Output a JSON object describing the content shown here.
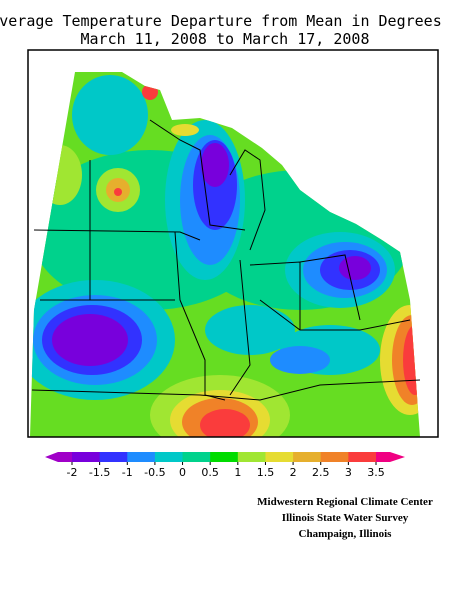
{
  "map": {
    "title": [
      "Average Temperature Departure from Mean in Degrees F",
      "March 11, 2008 to March 17, 2008"
    ],
    "legend": {
      "ticks": [
        -2,
        -1.5,
        -1,
        -0.5,
        0,
        0.5,
        1,
        1.5,
        2,
        2.5,
        3,
        3.5
      ],
      "colors": [
        "#a000c8",
        "#7800dc",
        "#3232ff",
        "#1e8cff",
        "#00c8c8",
        "#00d28c",
        "#00dc00",
        "#a0e632",
        "#e6dc32",
        "#e6af2d",
        "#f08228",
        "#fa3c3c",
        "#f00082"
      ]
    },
    "credits": [
      "Midwestern Regional Climate Center",
      "Illinois State Water Survey",
      "Champaign, Illinois"
    ]
  }
}
